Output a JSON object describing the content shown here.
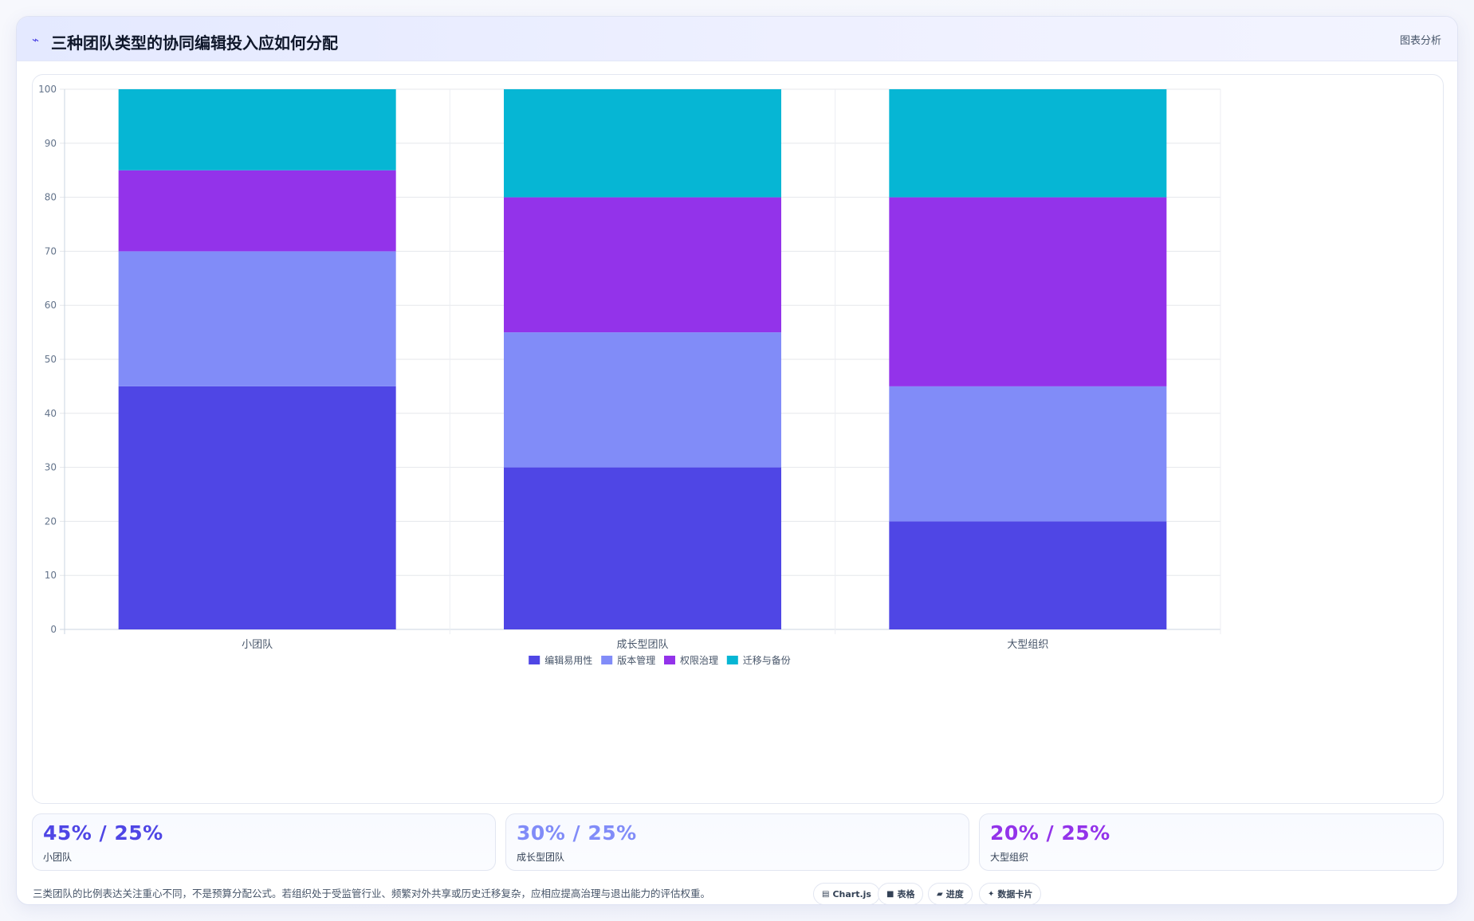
{
  "header": {
    "title": "三种团队类型的协同编辑投入应如何分配",
    "tag": "图表分析",
    "title_icon": "trend-icon"
  },
  "colors": {
    "编辑易用性": "#4f46e5",
    "版本管理": "#818cf8",
    "权限治理": "#9333ea",
    "迁移与备份": "#06b6d4"
  },
  "chart_data": {
    "type": "bar",
    "stacked": true,
    "title": "",
    "categories": [
      "小团队",
      "成长型团队",
      "大型组织"
    ],
    "series": [
      {
        "name": "编辑易用性",
        "values": [
          45,
          30,
          20
        ]
      },
      {
        "name": "版本管理",
        "values": [
          25,
          25,
          25
        ]
      },
      {
        "name": "权限治理",
        "values": [
          15,
          25,
          35
        ]
      },
      {
        "name": "迁移与备份",
        "values": [
          15,
          20,
          20
        ]
      }
    ],
    "ylim": [
      0,
      100
    ],
    "yticks": [
      0,
      10,
      20,
      30,
      40,
      50,
      60,
      70,
      80,
      90,
      100
    ],
    "grid": true,
    "legend": "bottom-center",
    "xlabel": "",
    "ylabel": ""
  },
  "stats": [
    {
      "value": "45% / 25%",
      "label": "小团队",
      "color": "#4f46e5"
    },
    {
      "value": "30% / 25%",
      "label": "成长型团队",
      "color": "#818cf8"
    },
    {
      "value": "20% / 25%",
      "label": "大型组织",
      "color": "#9333ea"
    }
  ],
  "footnote": "三类团队的比例表达关注重心不同，不是预算分配公式。若组织处于受监管行业、频繁对外共享或历史迁移复杂，应相应提高治理与退出能力的评估权重。",
  "chips": [
    {
      "icon": "chart-icon",
      "label": "Chart.js"
    },
    {
      "icon": "table-icon",
      "label": "表格"
    },
    {
      "icon": "progress-icon",
      "label": "进度"
    },
    {
      "icon": "sparkle-icon",
      "label": "数据卡片"
    }
  ]
}
